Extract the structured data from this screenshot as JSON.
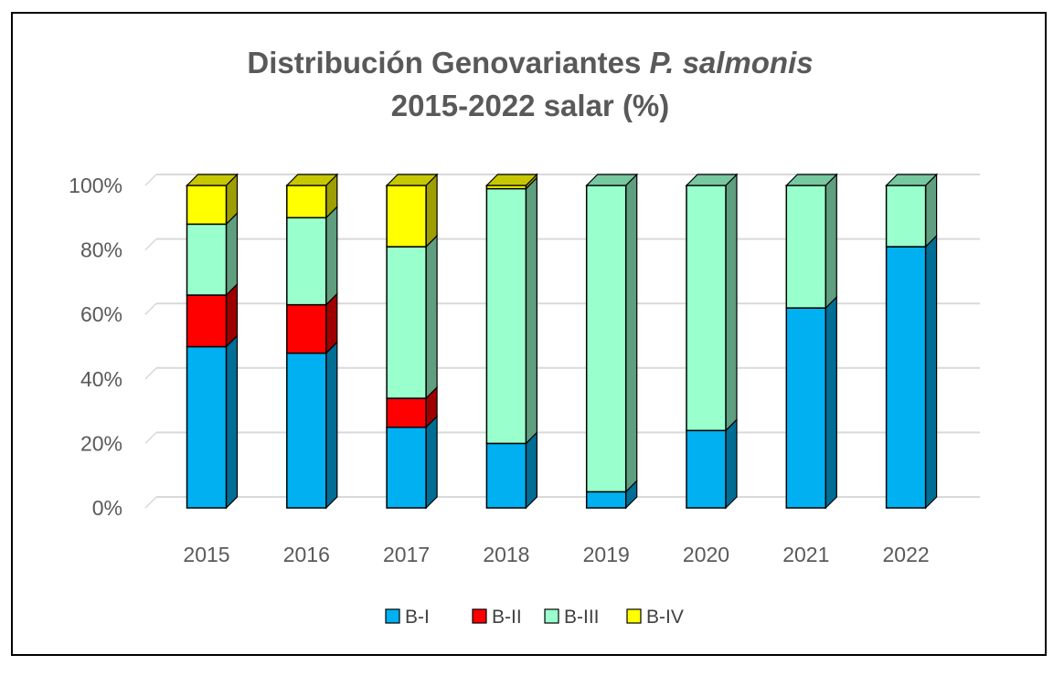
{
  "chart_data": {
    "type": "bar",
    "stacked": true,
    "title_line1": "Distribución Genovariantes",
    "title_line1_italic": "P. salmonis",
    "title_line2": "2015-2022 salar (%)",
    "categories": [
      "2015",
      "2016",
      "2017",
      "2018",
      "2019",
      "2020",
      "2021",
      "2022"
    ],
    "series": [
      {
        "name": "B-I",
        "color": "#00B0F0",
        "values": [
          50,
          48,
          25,
          20,
          5,
          24,
          62,
          81
        ]
      },
      {
        "name": "B-II",
        "color": "#FF0000",
        "values": [
          16,
          15,
          9,
          0,
          0,
          0,
          0,
          0
        ]
      },
      {
        "name": "B-III",
        "color": "#99FFCC",
        "values": [
          22,
          27,
          47,
          79,
          95,
          76,
          38,
          19
        ]
      },
      {
        "name": "B-IV",
        "color": "#FFFF00",
        "values": [
          12,
          10,
          19,
          1,
          0,
          0,
          0,
          0
        ]
      }
    ],
    "y_ticks": [
      "0%",
      "20%",
      "40%",
      "60%",
      "80%",
      "100%"
    ],
    "ylim": [
      0,
      100
    ],
    "grid": true,
    "legend_position": "bottom"
  }
}
